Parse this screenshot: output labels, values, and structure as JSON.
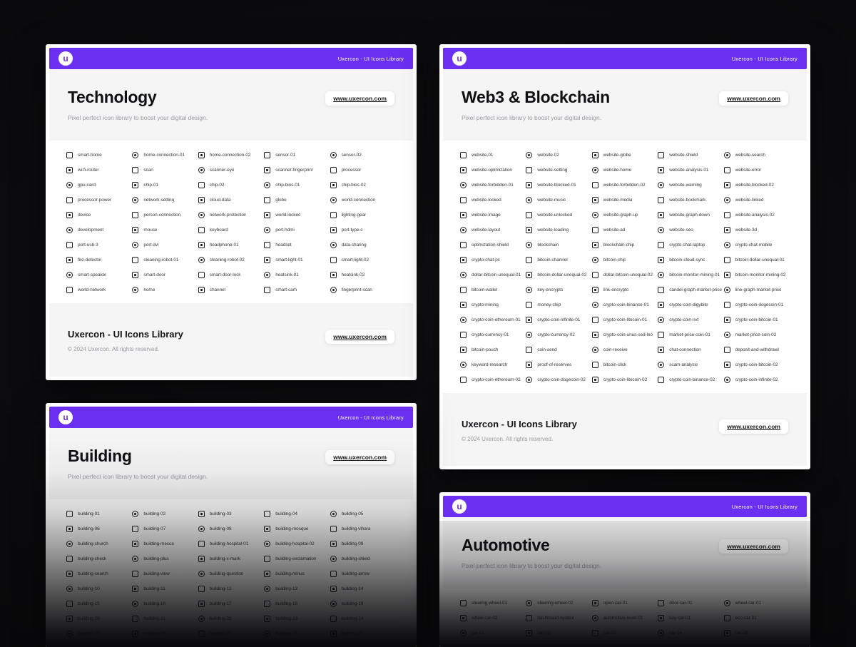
{
  "page": {
    "background": "#0a0a0c"
  },
  "brand": {
    "header_label": "Uxercon - UI Icons Library",
    "logo_letter": "u",
    "url_badge": "www.uxercon.com",
    "tagline": "Pixel perfect icon library to boost your digital design.",
    "accent_purple": "#6A2FF0"
  },
  "footer": {
    "title": "Uxercon - UI Icons Library",
    "copyright": "© 2024 Uxercon. All rights reserved."
  },
  "cards": [
    {
      "id": "technology",
      "title": "Technology",
      "icons": [
        "smart-home",
        "home-connection-01",
        "home-connection-02",
        "sensor-01",
        "sensor-02",
        "wi-fi-router",
        "scan",
        "scanner-eye",
        "scanner-fingerprint",
        "processor",
        "gpu-card",
        "chip-01",
        "chip-02",
        "chip-bios-01",
        "chip-bios-02",
        "processor-power",
        "network-setting",
        "cloud-data",
        "globe",
        "world-connection",
        "device",
        "person-connection",
        "network-protection",
        "world-locked",
        "lighting-gear",
        "development",
        "mouse",
        "keyboard",
        "port-hdmi",
        "port-type-c",
        "port-usb-3",
        "port-dvi",
        "headphone-01",
        "headset",
        "data-sharing",
        "fire-detector",
        "cleaning-robot-01",
        "cleaning-robot-02",
        "smart-light-01",
        "smart-light-02",
        "smart-speaker",
        "smart-door",
        "smart-door-lock",
        "heatsink-01",
        "heatsink-02",
        "world-network",
        "home",
        "channel",
        "smart-cam",
        "fingerprint-scan"
      ]
    },
    {
      "id": "web3-blockchain",
      "title": "Web3 & Blockchain",
      "icons": [
        "website-01",
        "website-02",
        "website-globe",
        "website-shield",
        "website-search",
        "website-optimization",
        "website-setting",
        "website-home",
        "website-analysis-01",
        "website-error",
        "website-forbidden-01",
        "website-blocked-01",
        "website-forbidden-02",
        "website-warning",
        "website-blocked-02",
        "website-locked",
        "website-music",
        "website-media",
        "website-bookmark",
        "website-linked",
        "website-image",
        "website-unlocked",
        "website-graph-up",
        "website-graph-down",
        "website-analysis-02",
        "website-layout",
        "website-loading",
        "website-ad",
        "website-seo",
        "website-3d",
        "optimization-shield",
        "blockchain",
        "blockchain-chip",
        "crypto-chat-laptop",
        "crypto-chat-mobile",
        "crypto-chat-pc",
        "bitcoin-channel",
        "bitcoin-chip",
        "bitcoin-cloud-sync",
        "bitcoin-dollar-unequal-01",
        "dollar-bitcoin-unequal-01",
        "bitcoin-dollar-unequal-02",
        "dollar-bitcoin-unequal-02",
        "bitcoin-monitor-mining-01",
        "bitcoin-monitor-mining-02",
        "bitcoin-wallet",
        "key-encrypto",
        "link-encrypto",
        "candel-graph-market-price",
        "line-graph-market-price",
        "crypto-mining",
        "money-chip",
        "crypto-coin-binance-01",
        "crypto-coin-digybite",
        "crypto-coin-dogecoin-01",
        "crypto-coin-ethereum-01",
        "crypto-coin-infinite-01",
        "crypto-coin-litecoin-01",
        "crypto-coin-nxt",
        "crypto-coin-bitcoin-01",
        "crypto-currency-01",
        "crypto-currency-02",
        "crypto-coin-unus-sed-leo",
        "market-price-coin-01",
        "market-price-coin-02",
        "bitcoin-pouch",
        "coin-send",
        "coin-receive",
        "chat-connection",
        "deposit-and-withdrawl",
        "keyword-research",
        "proof-of-reserves",
        "bitcoin-click",
        "scam-analysis",
        "crypto-coin-bitcoin-02",
        "crypto-coin-ethereum-02",
        "crypto-coin-dogecoin-02",
        "crypto-coin-litecoin-02",
        "crypto-coin-binance-02",
        "crypto-coin-infinite-02"
      ]
    },
    {
      "id": "building",
      "title": "Building",
      "icons": [
        "building-01",
        "building-02",
        "building-03",
        "building-04",
        "building-05",
        "building-06",
        "building-07",
        "building-08",
        "building-mosque",
        "building-vihara",
        "building-church",
        "building-mecca",
        "building-hospital-01",
        "building-hospital-02",
        "building-09",
        "building-check",
        "building-plus",
        "building-x-mark",
        "building-exclamation",
        "building-shield",
        "building-search",
        "building-view",
        "building-question",
        "building-minus",
        "building-arrow",
        "building-10",
        "building-11",
        "building-12",
        "building-13",
        "building-14",
        "building-15",
        "building-16",
        "building-17",
        "building-18",
        "building-19",
        "building-20",
        "building-21",
        "building-22",
        "building-23",
        "building-24",
        "building-25",
        "building-26",
        "building-27",
        "building-28",
        "building-29"
      ]
    },
    {
      "id": "automotive",
      "title": "Automotive",
      "icons": [
        "steering-wheel-01",
        "steering-wheel-02",
        "open-car-01",
        "door-car-01",
        "wheel-car-01",
        "wheel-car-02",
        "dashboard-system",
        "automotive-lever-01",
        "key-car-01",
        "eco-car-01",
        "car-01",
        "car-02",
        "car-03",
        "car-04",
        "car-05"
      ]
    }
  ]
}
